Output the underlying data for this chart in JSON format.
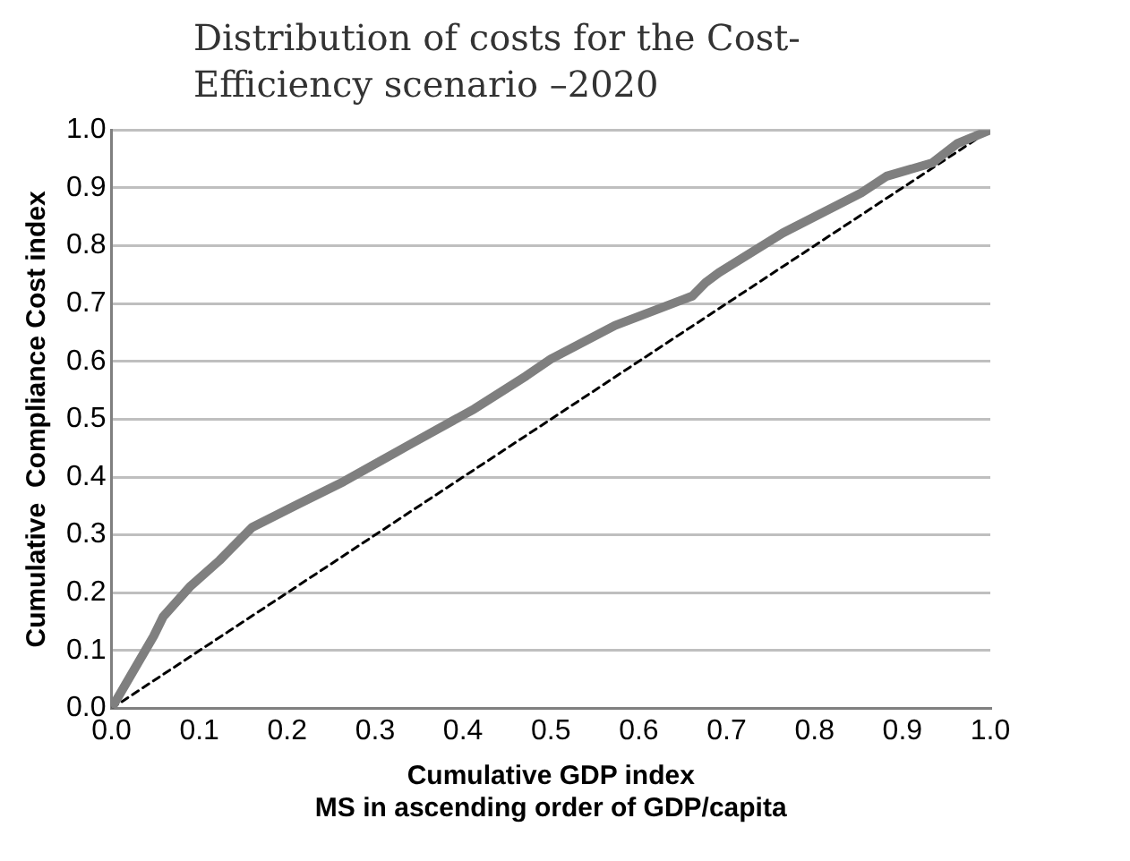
{
  "chart_data": {
    "type": "line",
    "title": "Distribution of costs for the Cost-Efficiency scenario –2020",
    "xlabel": "Cumulative GDP index\nMS in ascending order of GDP/capita",
    "ylabel": "Cumulative  Compliance Cost index",
    "series": [
      {
        "color": "#7f7f7f",
        "x": [
          0,
          0.048,
          0.059,
          0.089,
          0.123,
          0.16,
          0.212,
          0.264,
          0.338,
          0.413,
          0.472,
          0.5,
          0.573,
          0.661,
          0.676,
          0.691,
          0.764,
          0.853,
          0.882,
          0.934,
          0.963,
          1
        ],
        "values": [
          0,
          0.125,
          0.159,
          0.21,
          0.256,
          0.313,
          0.353,
          0.392,
          0.455,
          0.518,
          0.575,
          0.604,
          0.662,
          0.713,
          0.736,
          0.753,
          0.822,
          0.891,
          0.92,
          0.943,
          0.977,
          1
        ]
      },
      {
        "color": "#000000",
        "line_style": "dashed",
        "x": [
          0,
          1
        ],
        "values": [
          0,
          1
        ]
      }
    ],
    "xlim": [
      0,
      1
    ],
    "ylim": [
      0,
      1
    ],
    "xticks": [
      {
        "value": 0,
        "label": "0.0"
      },
      0.1,
      0.2,
      0.3,
      0.4,
      0.5,
      0.6,
      0.7,
      0.8,
      0.9,
      {
        "value": 1,
        "label": "1.0"
      }
    ],
    "yticks": [
      {
        "value": 0,
        "label": "0.0"
      },
      0.1,
      0.2,
      0.3,
      0.4,
      0.5,
      0.6,
      0.7,
      0.8,
      0.9,
      {
        "value": 1,
        "label": "1.0"
      }
    ],
    "grid": "y",
    "legend": false
  }
}
